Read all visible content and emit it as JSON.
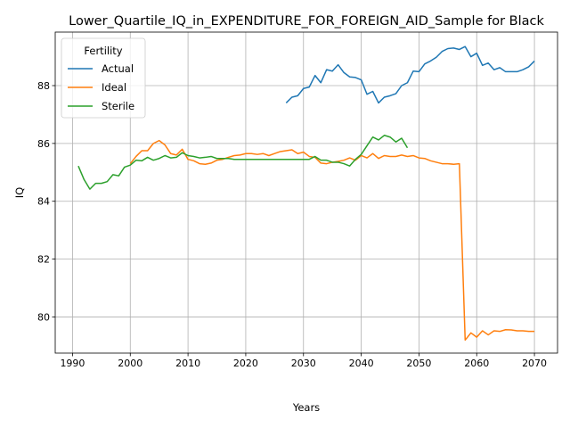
{
  "chart_data": {
    "type": "line",
    "title": "Lower_Quartile_IQ_in_EXPENDITURE_FOR_FOREIGN_AID_Sample for Black",
    "xlabel": "Years",
    "ylabel": "IQ",
    "xlim": [
      1987,
      2074
    ],
    "ylim": [
      78.75,
      89.85
    ],
    "xticks": [
      1990,
      2000,
      2010,
      2020,
      2030,
      2040,
      2050,
      2060,
      2070
    ],
    "yticks": [
      80,
      82,
      84,
      86,
      88
    ],
    "grid": true,
    "legend": {
      "title": "Fertility",
      "placement": "top-left"
    },
    "series": [
      {
        "name": "Actual",
        "color": "#1f77b4",
        "x": [
          2027,
          2028,
          2029,
          2030,
          2031,
          2032,
          2033,
          2034,
          2035,
          2036,
          2037,
          2038,
          2039,
          2040,
          2041,
          2042,
          2043,
          2044,
          2045,
          2046,
          2047,
          2048,
          2049,
          2050,
          2051,
          2052,
          2053,
          2054,
          2055,
          2056,
          2057,
          2058,
          2059,
          2060,
          2061,
          2062,
          2063,
          2064,
          2065,
          2066,
          2067,
          2068,
          2069,
          2070
        ],
        "values": [
          87.4,
          87.6,
          87.65,
          87.9,
          87.95,
          88.35,
          88.1,
          88.55,
          88.5,
          88.72,
          88.45,
          88.3,
          88.28,
          88.2,
          87.7,
          87.8,
          87.4,
          87.6,
          87.65,
          87.72,
          88.0,
          88.1,
          88.5,
          88.48,
          88.75,
          88.85,
          88.98,
          89.18,
          89.28,
          89.3,
          89.25,
          89.35,
          89.0,
          89.12,
          88.7,
          88.78,
          88.55,
          88.62,
          88.48,
          88.48,
          88.48,
          88.55,
          88.65,
          88.85
        ]
      },
      {
        "name": "Ideal",
        "color": "#ff7f0e",
        "x": [
          2000,
          2001,
          2002,
          2003,
          2004,
          2005,
          2006,
          2007,
          2008,
          2009,
          2010,
          2011,
          2012,
          2013,
          2014,
          2015,
          2016,
          2017,
          2018,
          2019,
          2020,
          2021,
          2022,
          2023,
          2024,
          2025,
          2026,
          2027,
          2028,
          2029,
          2030,
          2031,
          2032,
          2033,
          2034,
          2035,
          2036,
          2037,
          2038,
          2039,
          2040,
          2041,
          2042,
          2043,
          2044,
          2045,
          2046,
          2047,
          2048,
          2049,
          2050,
          2051,
          2052,
          2053,
          2054,
          2055,
          2056,
          2057,
          2058,
          2059,
          2060,
          2061,
          2062,
          2063,
          2064,
          2065,
          2066,
          2067,
          2068,
          2069,
          2070
        ],
        "values": [
          85.3,
          85.55,
          85.75,
          85.75,
          86.0,
          86.1,
          85.95,
          85.65,
          85.6,
          85.8,
          85.45,
          85.4,
          85.3,
          85.28,
          85.32,
          85.42,
          85.45,
          85.52,
          85.58,
          85.6,
          85.65,
          85.65,
          85.62,
          85.65,
          85.58,
          85.65,
          85.72,
          85.75,
          85.78,
          85.65,
          85.7,
          85.55,
          85.52,
          85.32,
          85.3,
          85.35,
          85.38,
          85.42,
          85.5,
          85.42,
          85.58,
          85.5,
          85.65,
          85.48,
          85.58,
          85.55,
          85.55,
          85.6,
          85.55,
          85.58,
          85.5,
          85.48,
          85.4,
          85.35,
          85.3,
          85.3,
          85.28,
          85.3,
          79.2,
          79.45,
          79.3,
          79.52,
          79.38,
          79.52,
          79.5,
          79.56,
          79.55,
          79.52,
          79.52,
          79.5,
          79.5
        ]
      },
      {
        "name": "Sterile",
        "color": "#2ca02c",
        "x": [
          1991,
          1992,
          1993,
          1994,
          1995,
          1996,
          1997,
          1998,
          1999,
          2000,
          2001,
          2002,
          2003,
          2004,
          2005,
          2006,
          2007,
          2008,
          2009,
          2010,
          2011,
          2012,
          2013,
          2014,
          2015,
          2016,
          2017,
          2018,
          2019,
          2020,
          2021,
          2022,
          2023,
          2024,
          2025,
          2026,
          2027,
          2028,
          2029,
          2030,
          2031,
          2032,
          2033,
          2034,
          2035,
          2036,
          2037,
          2038,
          2039,
          2040,
          2041,
          2042,
          2043,
          2044,
          2045,
          2046,
          2047,
          2048
        ],
        "values": [
          85.22,
          84.75,
          84.42,
          84.62,
          84.62,
          84.68,
          84.92,
          84.88,
          85.18,
          85.25,
          85.42,
          85.4,
          85.52,
          85.42,
          85.48,
          85.58,
          85.5,
          85.52,
          85.68,
          85.58,
          85.55,
          85.5,
          85.52,
          85.55,
          85.48,
          85.48,
          85.48,
          85.45,
          85.45,
          85.45,
          85.45,
          85.45,
          85.45,
          85.45,
          85.45,
          85.45,
          85.45,
          85.45,
          85.45,
          85.45,
          85.45,
          85.55,
          85.42,
          85.42,
          85.35,
          85.35,
          85.3,
          85.22,
          85.45,
          85.62,
          85.92,
          86.22,
          86.12,
          86.28,
          86.22,
          86.05,
          86.18,
          85.85
        ]
      }
    ]
  }
}
